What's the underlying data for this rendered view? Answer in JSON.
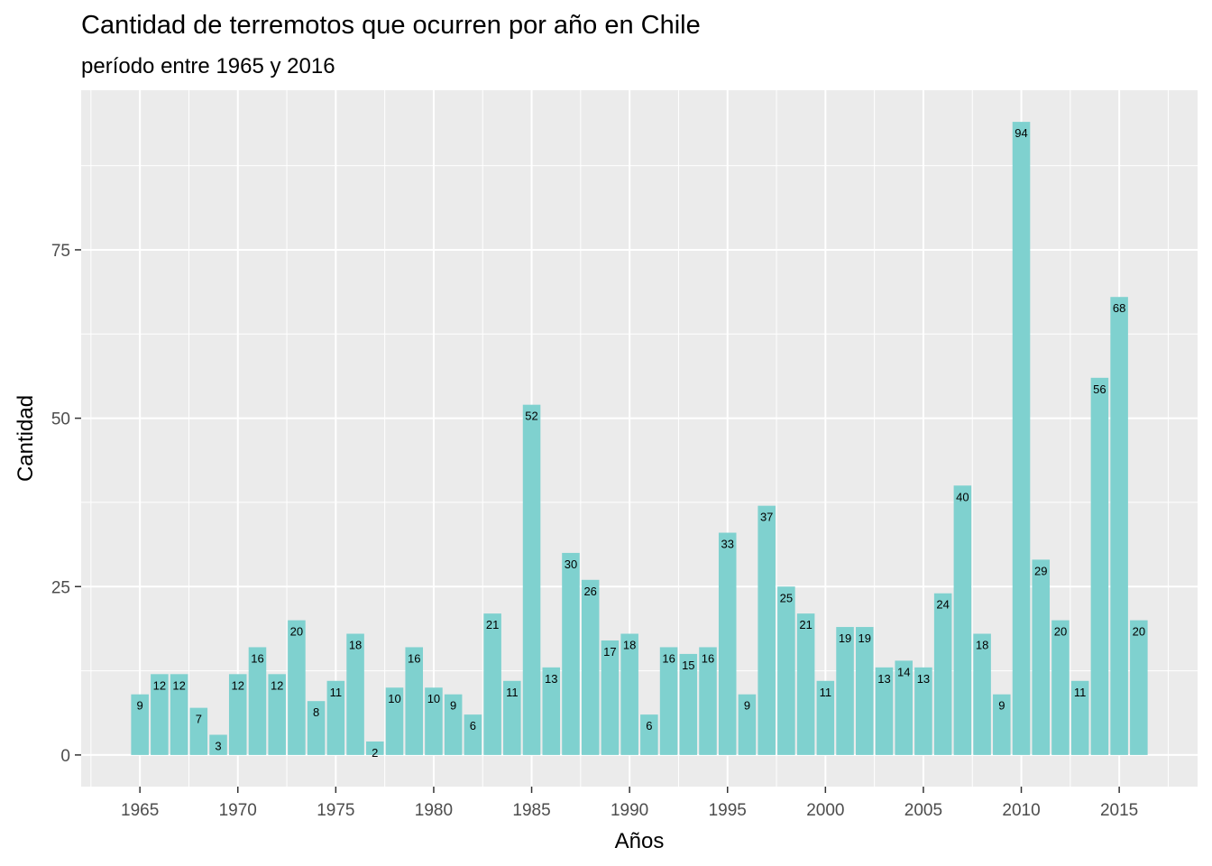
{
  "chart_data": {
    "type": "bar",
    "title": "Cantidad de terremotos que ocurren por año en Chile",
    "subtitle": "período entre 1965 y 2016",
    "xlabel": "Años",
    "ylabel": "Cantidad",
    "bar_color": "#7fd1cf",
    "panel_color": "#ebebeb",
    "grid": true,
    "xlim": [
      1962,
      2019
    ],
    "ylim": [
      -4.7,
      98.7
    ],
    "x_ticks": [
      1965,
      1970,
      1975,
      1980,
      1985,
      1990,
      1995,
      2000,
      2005,
      2010,
      2015
    ],
    "y_ticks": [
      0,
      25,
      50,
      75
    ],
    "categories": [
      1965,
      1966,
      1967,
      1968,
      1969,
      1970,
      1971,
      1972,
      1973,
      1974,
      1975,
      1976,
      1977,
      1978,
      1979,
      1980,
      1981,
      1982,
      1983,
      1984,
      1985,
      1986,
      1987,
      1988,
      1989,
      1990,
      1991,
      1992,
      1993,
      1994,
      1995,
      1996,
      1997,
      1998,
      1999,
      2000,
      2001,
      2002,
      2003,
      2004,
      2005,
      2006,
      2007,
      2008,
      2009,
      2010,
      2011,
      2012,
      2013,
      2014,
      2015,
      2016
    ],
    "values": [
      9,
      12,
      12,
      7,
      3,
      12,
      16,
      12,
      20,
      8,
      11,
      18,
      2,
      10,
      16,
      10,
      9,
      6,
      21,
      11,
      52,
      13,
      30,
      26,
      17,
      18,
      6,
      16,
      15,
      16,
      33,
      9,
      37,
      25,
      21,
      11,
      19,
      19,
      13,
      14,
      13,
      24,
      40,
      18,
      9,
      94,
      29,
      20,
      11,
      56,
      68,
      20
    ]
  }
}
